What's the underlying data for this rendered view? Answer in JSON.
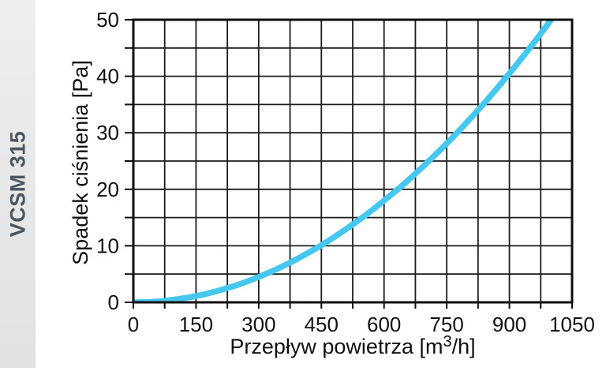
{
  "side_label": "VCSM 315",
  "colors": {
    "background": "#ffffff",
    "curve": "#45C7F0",
    "grid": "#1c1c1c",
    "frame": "#0f0f0f",
    "text": "#111111",
    "strip_bg": "#e8e8e8",
    "strip_text": "#4d5761"
  },
  "chart_data": {
    "type": "line",
    "title": "",
    "xlabel": "Przepływ powietrza [m³/h]",
    "ylabel": "Spadek ciśnienia [Pa]",
    "xlim": [
      0,
      1050
    ],
    "ylim": [
      0,
      50
    ],
    "xticks": [
      0,
      150,
      300,
      450,
      600,
      750,
      900,
      1050
    ],
    "yticks": [
      0,
      10,
      20,
      30,
      40,
      50
    ],
    "grid_step_x": 75,
    "grid_step_y": 5,
    "grid": true,
    "legend": false,
    "series": [
      {
        "name": "VCSM 315",
        "color": "#45C7F0",
        "points": [
          [
            0,
            0
          ],
          [
            50,
            0.1
          ],
          [
            100,
            0.5
          ],
          [
            150,
            1.1
          ],
          [
            200,
            2.0
          ],
          [
            250,
            3.1
          ],
          [
            300,
            4.5
          ],
          [
            350,
            6.1
          ],
          [
            400,
            8.0
          ],
          [
            450,
            10.1
          ],
          [
            500,
            12.5
          ],
          [
            550,
            15.1
          ],
          [
            600,
            18.0
          ],
          [
            650,
            21.1
          ],
          [
            700,
            24.5
          ],
          [
            750,
            28.1
          ],
          [
            800,
            32.0
          ],
          [
            850,
            36.1
          ],
          [
            900,
            40.5
          ],
          [
            950,
            45.1
          ],
          [
            1000,
            50.0
          ]
        ]
      }
    ]
  },
  "x_axis_title_parts": {
    "prefix": "Przepływ powietrza [m",
    "sup": "3",
    "suffix": "/h]"
  }
}
